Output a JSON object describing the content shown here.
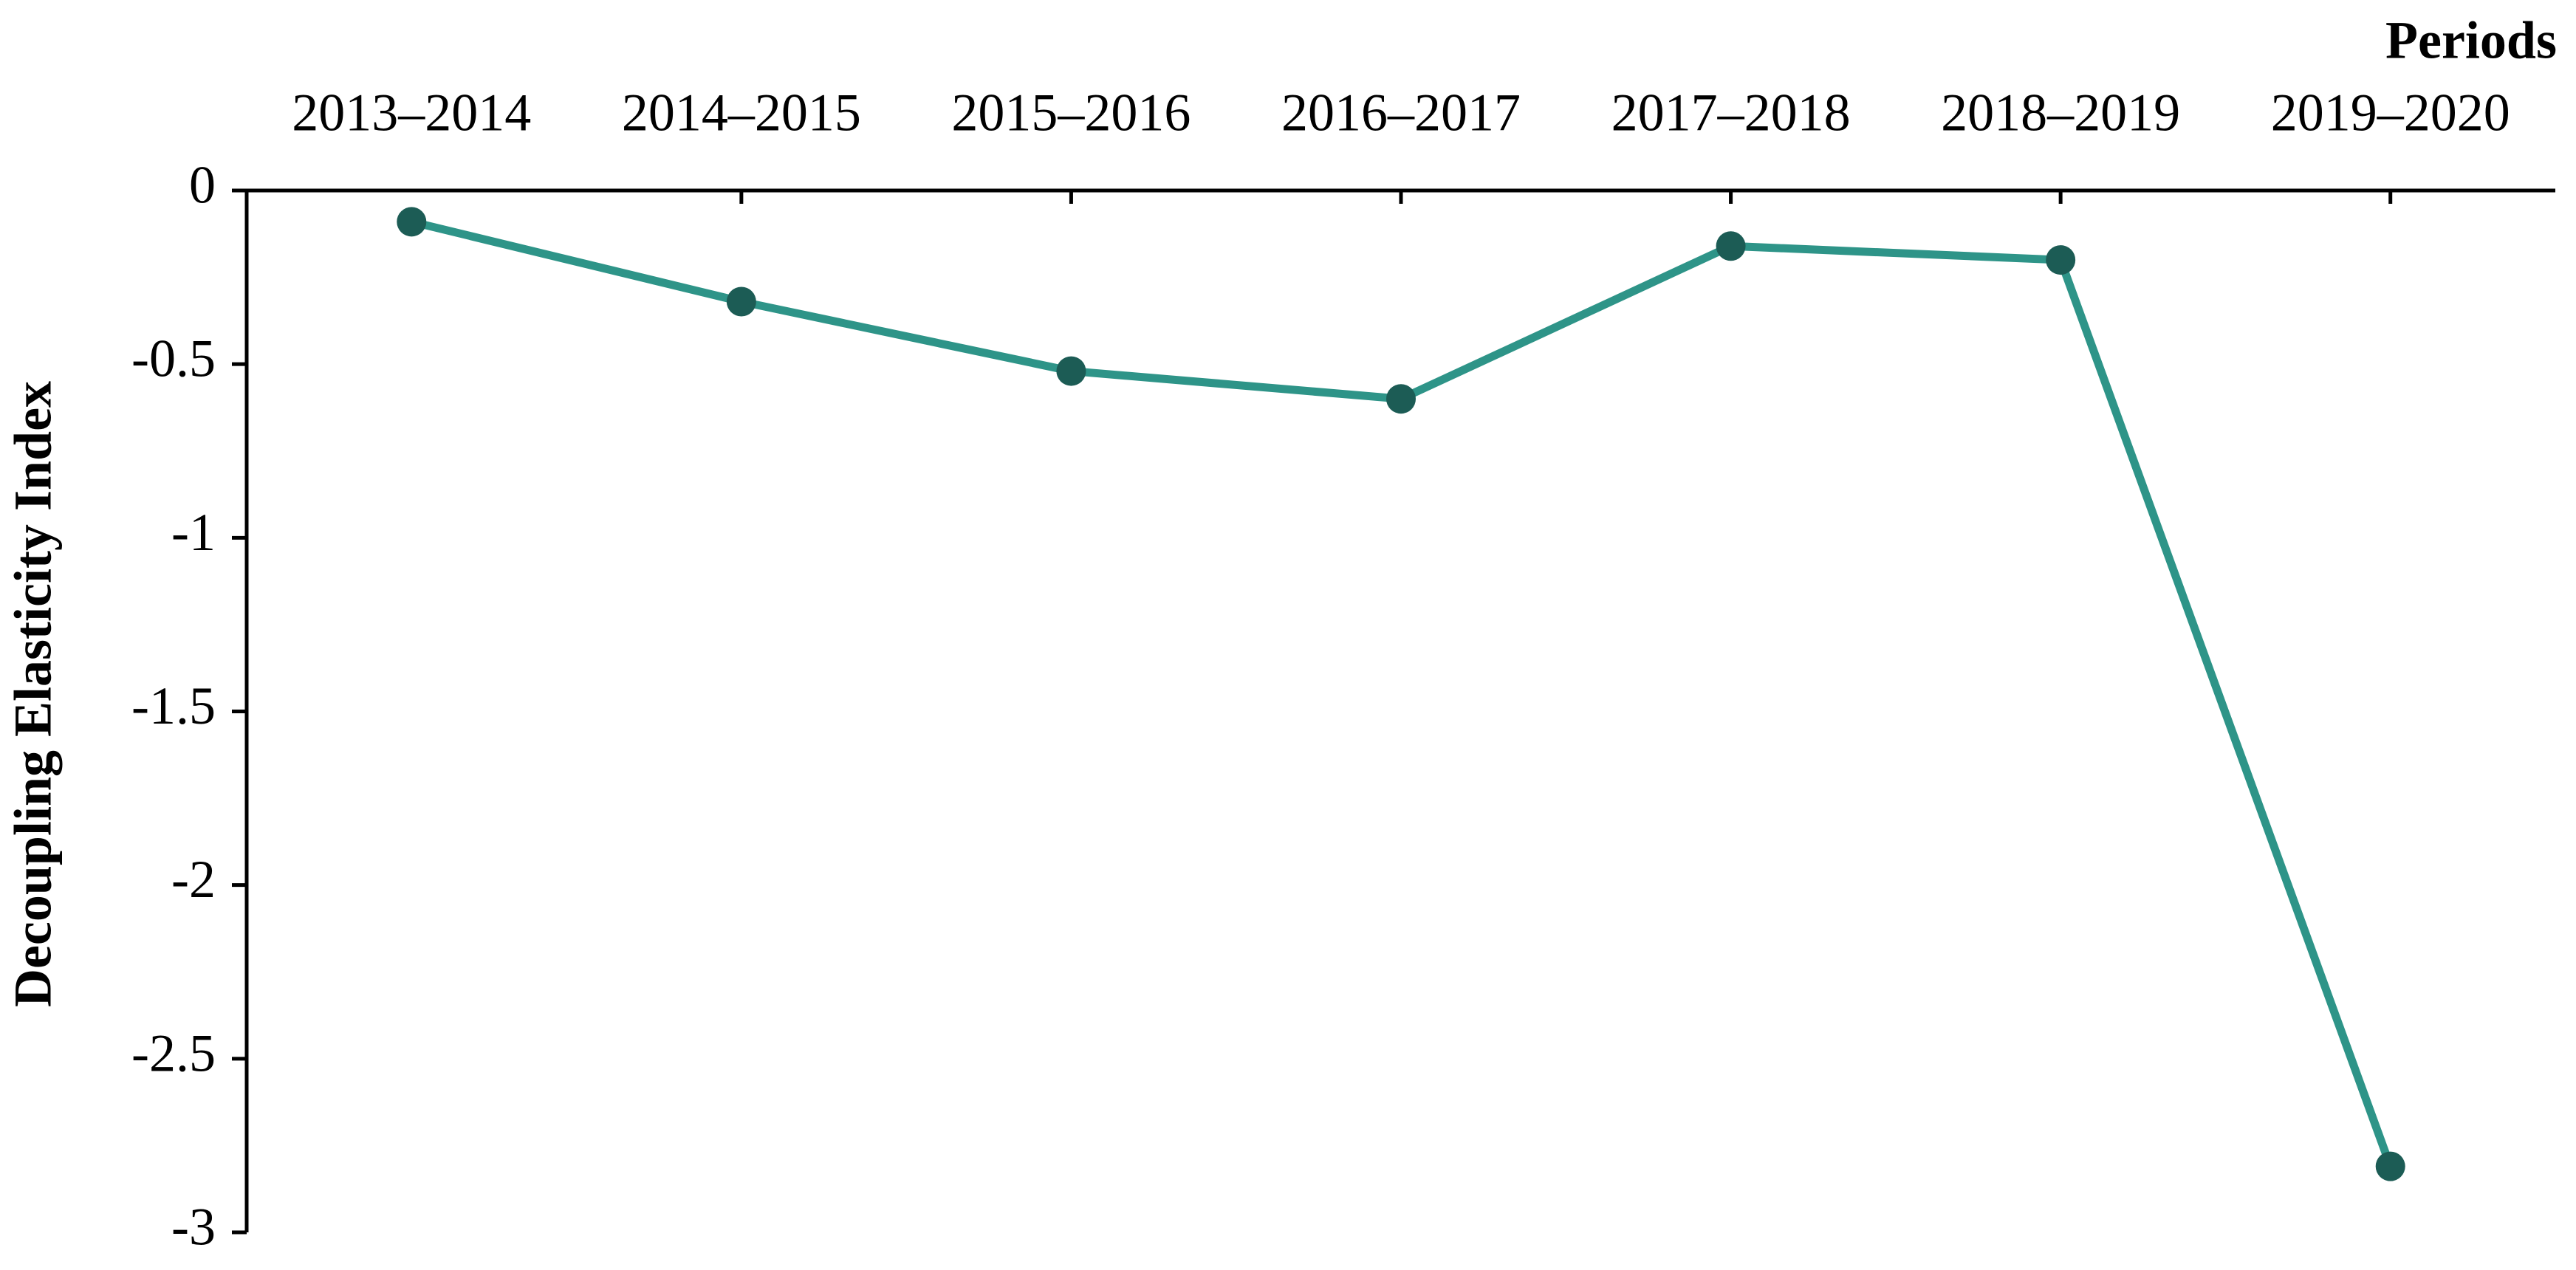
{
  "chart_data": {
    "type": "line",
    "x_label": "Periods",
    "y_label": "Decoupling Elasticity Index",
    "categories": [
      "2013–2014",
      "2014–2015",
      "2015–2016",
      "2016–2017",
      "2017–2018",
      "2018–2019",
      "2019–2020"
    ],
    "series": [
      {
        "color": "#2e9488",
        "marker_color": "#1c5c55",
        "values": [
          -0.09,
          -0.32,
          -0.52,
          -0.6,
          -0.16,
          -0.2,
          -2.81
        ]
      }
    ],
    "ylim": [
      0,
      -3
    ],
    "yticks": [
      0,
      -0.5,
      -1,
      -1.5,
      -2,
      -2.5,
      -3
    ],
    "grid": false
  }
}
